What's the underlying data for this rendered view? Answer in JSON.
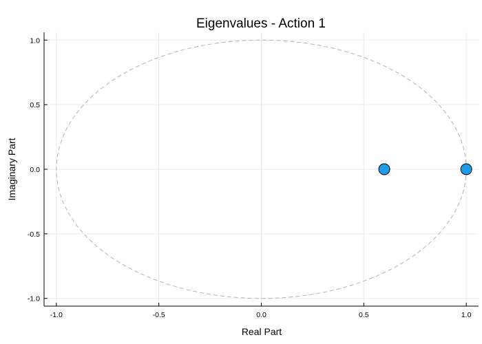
{
  "chart_data": {
    "type": "scatter",
    "title": "Eigenvalues - Action 1",
    "xlabel": "Real Part",
    "ylabel": "Imaginary Part",
    "xlim": [
      -1.06,
      1.06
    ],
    "ylim": [
      -1.06,
      1.06
    ],
    "x_ticks": [
      -1.0,
      -0.5,
      0.0,
      0.5,
      1.0
    ],
    "x_tick_labels": [
      "-1.0",
      "-0.5",
      "0.0",
      "0.5",
      "1.0"
    ],
    "y_ticks": [
      -1.0,
      -0.5,
      0.0,
      0.5,
      1.0
    ],
    "y_tick_labels": [
      "-1.0",
      "-0.5",
      "0.0",
      "0.5",
      "1.0"
    ],
    "grid": true,
    "legend": "none",
    "unit_circle": {
      "style": "dashed",
      "color": "#b3b3b3",
      "radius": 1.0
    },
    "series": [
      {
        "points": [
          {
            "x": 0.6,
            "y": 0.0
          },
          {
            "x": 1.0,
            "y": 0.0
          }
        ],
        "color": "#1e9be9",
        "edge_color": "#000000"
      }
    ]
  }
}
